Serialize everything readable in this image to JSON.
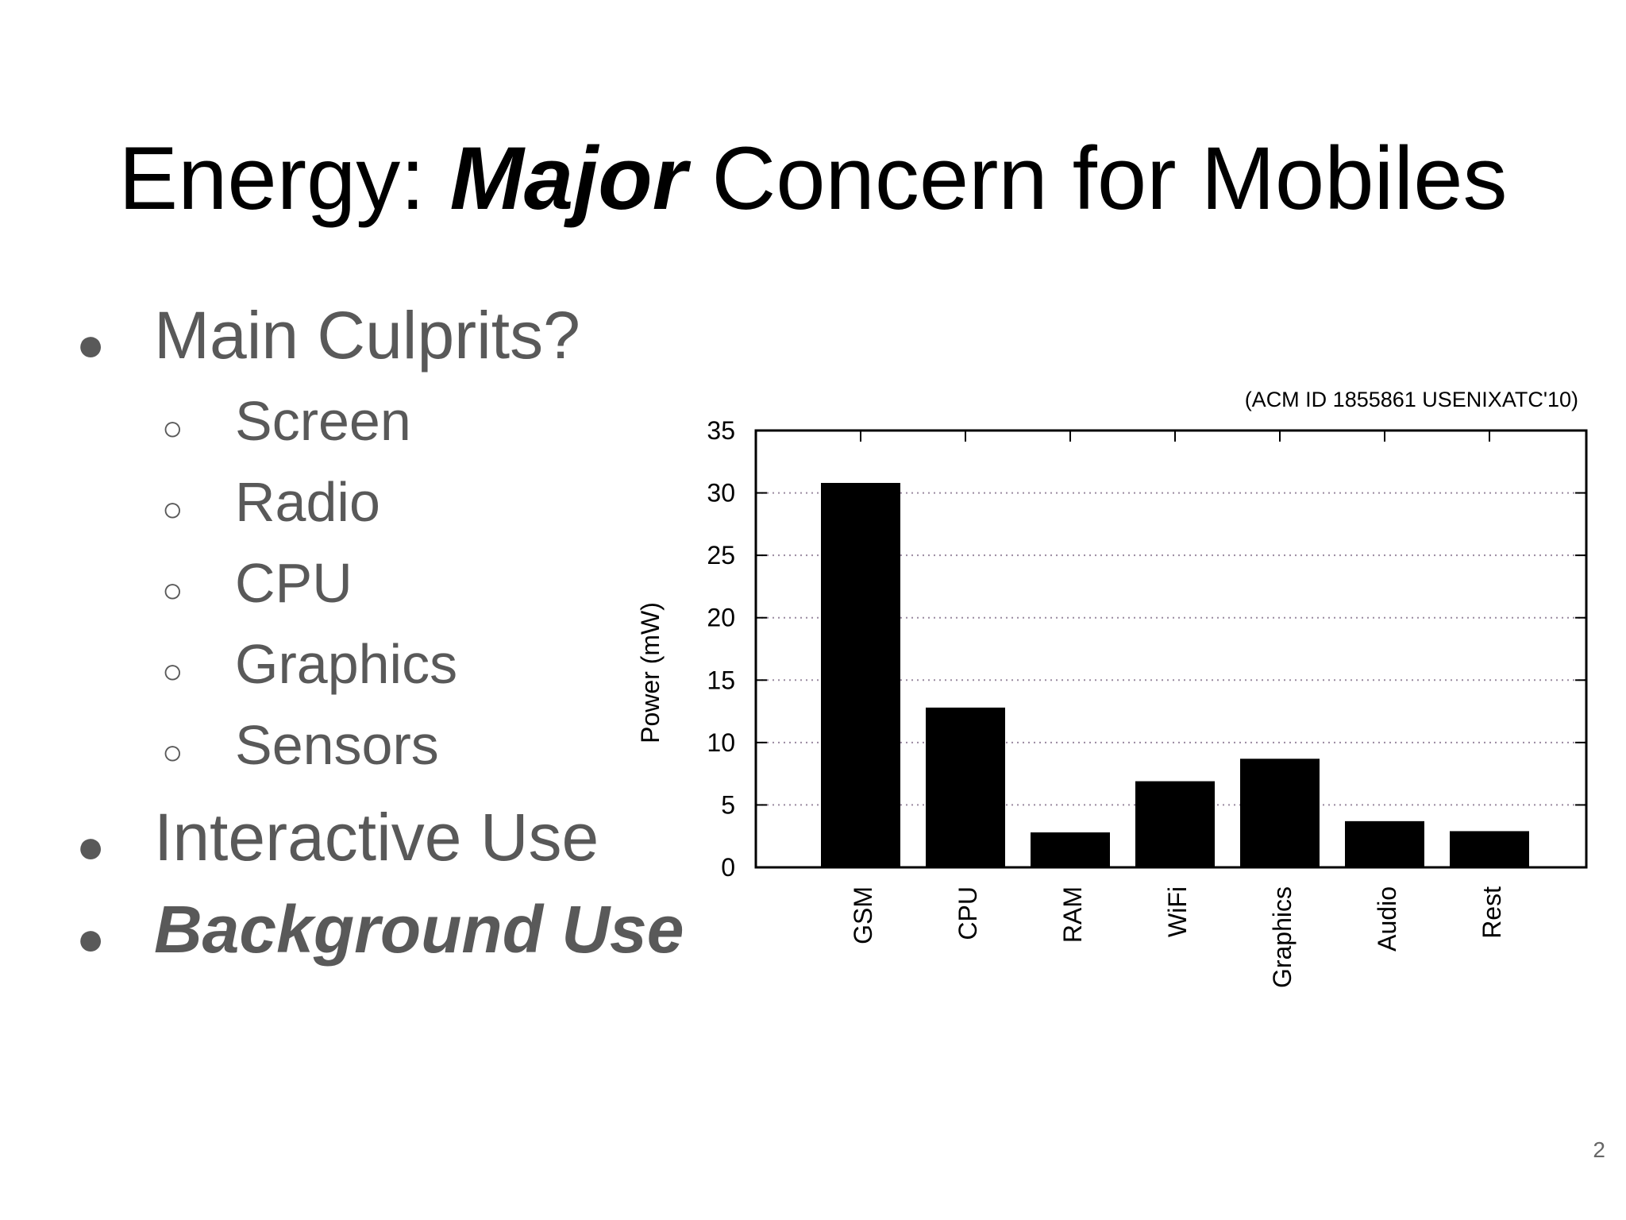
{
  "slide": {
    "title_pre": "Energy: ",
    "title_emph": "Major",
    "title_post": " Concern for Mobiles",
    "bullets": [
      {
        "text": "Main Culprits?",
        "glyph": "●"
      },
      {
        "text": "Screen",
        "glyph": "○"
      },
      {
        "text": "Radio",
        "glyph": "○"
      },
      {
        "text": "CPU",
        "glyph": "○"
      },
      {
        "text": "Graphics",
        "glyph": "○"
      },
      {
        "text": "Sensors",
        "glyph": "○"
      },
      {
        "text": "Interactive Use",
        "glyph": "●"
      },
      {
        "text": "Background Use",
        "glyph": "●"
      }
    ],
    "page_number": "2"
  },
  "chart_data": {
    "type": "bar",
    "title": "",
    "citation": "(ACM ID 1855861 USENIXATC'10)",
    "categories": [
      "GSM",
      "CPU",
      "RAM",
      "WiFi",
      "Graphics",
      "Audio",
      "Rest"
    ],
    "values": [
      30.8,
      12.8,
      2.8,
      6.9,
      8.7,
      3.7,
      2.9
    ],
    "xlabel": "",
    "ylabel": "Power (mW)",
    "ylim": [
      0,
      35
    ],
    "yticks": [
      "0",
      "5",
      "10",
      "15",
      "20",
      "25",
      "30",
      "35"
    ],
    "grid": true,
    "legend": "none",
    "bar_color": "#000000",
    "grid_color": "#9a8aa0"
  }
}
